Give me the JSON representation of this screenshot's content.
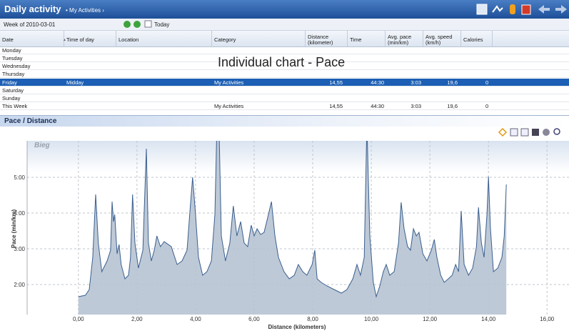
{
  "header": {
    "title": "Daily activity",
    "breadcrumb": "• My Activities ›"
  },
  "toolbar": {
    "week": "Week of 2010-03-01",
    "today": "Today"
  },
  "table": {
    "columns": [
      {
        "key": "date",
        "label": "Date"
      },
      {
        "key": "time_of_day",
        "label": "Time of day"
      },
      {
        "key": "location",
        "label": "Location"
      },
      {
        "key": "category",
        "label": "Category"
      },
      {
        "key": "distance",
        "label": "Distance (kilometer)"
      },
      {
        "key": "time",
        "label": "Time"
      },
      {
        "key": "pace",
        "label": "Avg. pace (min/km)"
      },
      {
        "key": "speed",
        "label": "Avg. speed (km/h)"
      },
      {
        "key": "calories",
        "label": "Calories"
      }
    ],
    "rows": [
      {
        "date": "Monday"
      },
      {
        "date": "Tuesday"
      },
      {
        "date": "Wednesday"
      },
      {
        "date": "Thursday"
      },
      {
        "date": "Friday",
        "time_of_day": "Midday",
        "category": "My Activities",
        "distance": "14,55",
        "time": "44:30",
        "pace": "3:03",
        "speed": "19,6",
        "calories": "0"
      },
      {
        "date": "Saturday"
      },
      {
        "date": "Sunday"
      },
      {
        "date": "This Week",
        "category": "My Activities",
        "distance": "14,55",
        "time": "44:30",
        "pace": "3:03",
        "speed": "19,6",
        "calories": "0"
      }
    ]
  },
  "overlay": "Individual chart - Pace",
  "panel_title": "Pace / Distance",
  "chart_data": {
    "type": "area",
    "series_label": "Bieg",
    "xlabel": "Distance (kilometers)",
    "ylabel": "Pace (min/km)",
    "color": "#3a5f8f",
    "fill": "#b7c3d3",
    "grid": true,
    "xlim": [
      -1.75,
      16.75
    ],
    "ylim": [
      1.16,
      6.02
    ],
    "xticks": [
      {
        "value": 0,
        "label": "0,00"
      },
      {
        "value": 2,
        "label": "2,00"
      },
      {
        "value": 4,
        "label": "4,00"
      },
      {
        "value": 6,
        "label": "6,00"
      },
      {
        "value": 8,
        "label": "8,00"
      },
      {
        "value": 10,
        "label": "10,00"
      },
      {
        "value": 12,
        "label": "12,00"
      },
      {
        "value": 14,
        "label": "14,00"
      },
      {
        "value": 16,
        "label": "16,00"
      }
    ],
    "yticks": [
      {
        "value": 2,
        "label": "2:00"
      },
      {
        "value": 3,
        "label": "3:00"
      },
      {
        "value": 4,
        "label": "4:00"
      },
      {
        "value": 5,
        "label": "5:00"
      }
    ],
    "x": [
      0,
      0.24,
      0.37,
      0.49,
      0.59,
      0.68,
      0.8,
      0.98,
      1.1,
      1.15,
      1.2,
      1.24,
      1.32,
      1.39,
      1.46,
      1.59,
      1.71,
      1.78,
      1.85,
      1.93,
      2.05,
      2.2,
      2.32,
      2.39,
      2.49,
      2.59,
      2.68,
      2.8,
      2.93,
      3.17,
      3.37,
      3.54,
      3.71,
      3.8,
      3.9,
      4.0,
      4.1,
      4.24,
      4.39,
      4.54,
      4.66,
      4.73,
      4.8,
      4.88,
      5.02,
      5.17,
      5.29,
      5.41,
      5.54,
      5.66,
      5.78,
      5.9,
      6.0,
      6.1,
      6.22,
      6.34,
      6.46,
      6.59,
      6.71,
      6.83,
      7.02,
      7.2,
      7.37,
      7.51,
      7.66,
      7.8,
      7.98,
      8.07,
      8.15,
      8.29,
      8.49,
      8.73,
      8.98,
      9.17,
      9.37,
      9.51,
      9.63,
      9.76,
      9.85,
      9.95,
      10.07,
      10.17,
      10.29,
      10.41,
      10.51,
      10.63,
      10.78,
      10.93,
      11.02,
      11.12,
      11.24,
      11.34,
      11.44,
      11.54,
      11.63,
      11.76,
      11.9,
      12.05,
      12.15,
      12.24,
      12.37,
      12.49,
      12.63,
      12.76,
      12.88,
      12.98,
      13.07,
      13.17,
      13.32,
      13.46,
      13.59,
      13.66,
      13.76,
      13.85,
      13.95,
      14.0,
      14.07,
      14.17,
      14.32,
      14.46,
      14.54,
      14.61
    ],
    "values": [
      1.66,
      1.7,
      1.86,
      2.76,
      4.52,
      3.16,
      2.36,
      2.66,
      2.96,
      4.32,
      3.76,
      3.96,
      2.86,
      3.12,
      2.56,
      2.16,
      2.26,
      2.76,
      4.52,
      3.16,
      2.46,
      2.96,
      5.8,
      3.16,
      2.66,
      2.96,
      3.36,
      3.06,
      3.2,
      3.06,
      2.56,
      2.66,
      2.96,
      3.96,
      5.0,
      3.96,
      2.76,
      2.26,
      2.36,
      2.66,
      3.96,
      6.5,
      6.5,
      3.36,
      2.66,
      3.16,
      4.2,
      3.36,
      3.76,
      3.16,
      3.06,
      3.66,
      3.36,
      3.56,
      3.4,
      3.46,
      3.86,
      4.32,
      3.36,
      2.76,
      2.36,
      2.16,
      2.26,
      2.56,
      2.36,
      2.26,
      2.56,
      2.96,
      2.16,
      2.06,
      1.96,
      1.86,
      1.76,
      1.86,
      2.16,
      2.56,
      2.26,
      2.76,
      6.5,
      3.36,
      2.06,
      1.66,
      1.96,
      2.36,
      2.56,
      2.26,
      2.36,
      3.16,
      4.3,
      3.56,
      3.06,
      2.96,
      3.56,
      3.36,
      3.46,
      2.86,
      2.66,
      2.96,
      3.26,
      2.76,
      2.26,
      2.06,
      2.16,
      2.26,
      2.56,
      2.36,
      4.06,
      2.56,
      2.26,
      2.46,
      3.06,
      4.16,
      3.16,
      2.76,
      3.96,
      5.02,
      3.56,
      2.36,
      2.46,
      2.76,
      3.36,
      4.8
    ]
  }
}
